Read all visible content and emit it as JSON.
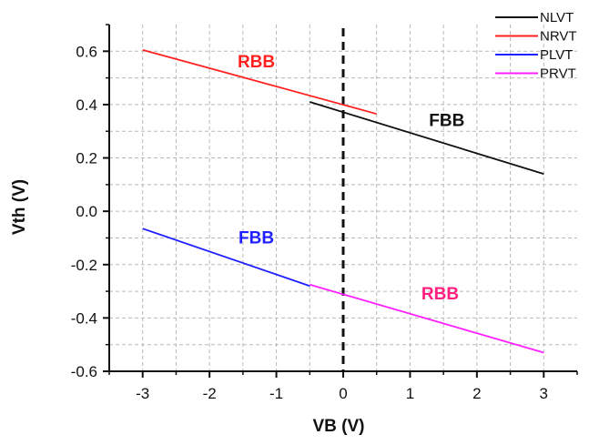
{
  "chart_data": {
    "type": "line",
    "xlabel": "VB (V)",
    "ylabel": "Vth (V)",
    "xlim": [
      -3.5,
      3.5
    ],
    "ylim": [
      -0.6,
      0.7
    ],
    "xticks": [
      -3,
      -2,
      -1,
      0,
      1,
      2,
      3
    ],
    "yticks": [
      -0.6,
      -0.4,
      -0.2,
      0.0,
      0.2,
      0.4,
      0.6
    ],
    "xtick_labels": [
      "-3",
      "-2",
      "-1",
      "0",
      "1",
      "2",
      "3"
    ],
    "ytick_labels": [
      "-0.6",
      "-0.4",
      "-0.2",
      "0.0",
      "0.2",
      "0.4",
      "0.6"
    ],
    "grid": "dashed",
    "legend_position": "top-right",
    "series": [
      {
        "name": "NLVT",
        "color": "#111111",
        "x": [
          -0.5,
          3.0
        ],
        "y": [
          0.41,
          0.14
        ]
      },
      {
        "name": "NRVT",
        "color": "#ff2020",
        "x": [
          -3.0,
          0.5
        ],
        "y": [
          0.605,
          0.365
        ]
      },
      {
        "name": "PLVT",
        "color": "#1f1fff",
        "x": [
          -3.0,
          -0.5
        ],
        "y": [
          -0.065,
          -0.28
        ]
      },
      {
        "name": "PRVT",
        "color": "#ff20ff",
        "x": [
          -0.5,
          3.0
        ],
        "y": [
          -0.275,
          -0.53
        ]
      }
    ],
    "vertical_line": {
      "x": 0,
      "style": "dashed",
      "color": "#111111"
    },
    "annotations": [
      {
        "text": "RBB",
        "color": "#ff2020",
        "x": -1.3,
        "y": 0.54
      },
      {
        "text": "FBB",
        "color": "#111111",
        "x": 1.55,
        "y": 0.32
      },
      {
        "text": "FBB",
        "color": "#1f1fff",
        "x": -1.3,
        "y": -0.12
      },
      {
        "text": "RBB",
        "color": "#ff2080",
        "x": 1.45,
        "y": -0.33
      }
    ]
  }
}
